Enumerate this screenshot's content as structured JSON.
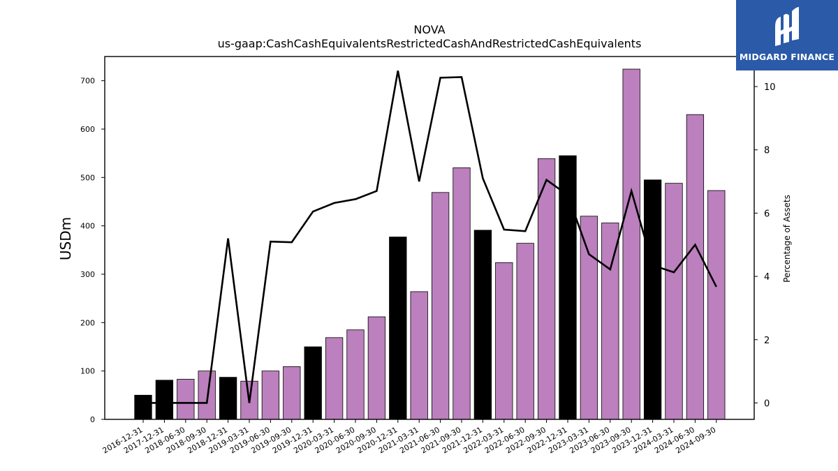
{
  "chart_data": {
    "type": "bar",
    "title": "NOVA",
    "subtitle": "us-gaap:CashCashEquivalentsRestrictedCashAndRestrictedCashEquivalents",
    "ylabel": "USDm",
    "y2label": "Percentage of Assets",
    "ylim": [
      0,
      750
    ],
    "y2lim": [
      -0.52,
      10.95
    ],
    "yticks": [
      0,
      100,
      200,
      300,
      400,
      500,
      600,
      700
    ],
    "y2ticks": [
      0,
      2,
      4,
      6,
      8,
      10
    ],
    "categories": [
      "2016-12-31",
      "2017-12-31",
      "2018-06-30",
      "2018-09-30",
      "2018-12-31",
      "2019-03-31",
      "2019-06-30",
      "2019-09-30",
      "2019-12-31",
      "2020-03-31",
      "2020-06-30",
      "2020-09-30",
      "2020-12-31",
      "2021-03-31",
      "2021-06-30",
      "2021-09-30",
      "2021-12-31",
      "2022-03-31",
      "2022-06-30",
      "2022-09-30",
      "2022-12-31",
      "2023-03-31",
      "2023-06-30",
      "2023-09-30",
      "2023-12-31",
      "2024-03-31",
      "2024-06-30",
      "2024-09-30"
    ],
    "series": [
      {
        "values": [
          50,
          81,
          83,
          100,
          87,
          79,
          100,
          109,
          150,
          169,
          185,
          212,
          377,
          264,
          469,
          520,
          391,
          324,
          364,
          539,
          545,
          420,
          406,
          724,
          495,
          488,
          630,
          473
        ],
        "annual": [
          true,
          true,
          false,
          false,
          true,
          false,
          false,
          false,
          true,
          false,
          false,
          false,
          true,
          false,
          false,
          false,
          true,
          false,
          false,
          false,
          true,
          false,
          false,
          false,
          true,
          false,
          false,
          false
        ],
        "color_annual": "#000000",
        "color_quarterly": "#bb80bd"
      },
      {
        "axis": "right",
        "type": "line",
        "color": "#000000",
        "values": [
          0.0,
          0.0,
          0.0,
          0.0,
          5.2,
          0.0,
          5.1,
          5.08,
          6.05,
          6.32,
          6.44,
          6.7,
          10.5,
          7.0,
          10.28,
          10.3,
          7.1,
          5.48,
          5.43,
          7.05,
          6.57,
          4.7,
          4.22,
          6.7,
          4.35,
          4.13,
          5.0,
          3.67
        ]
      }
    ]
  },
  "logo": {
    "text": "MIDGARD FINANCE",
    "bg": "#2a5aa8"
  }
}
